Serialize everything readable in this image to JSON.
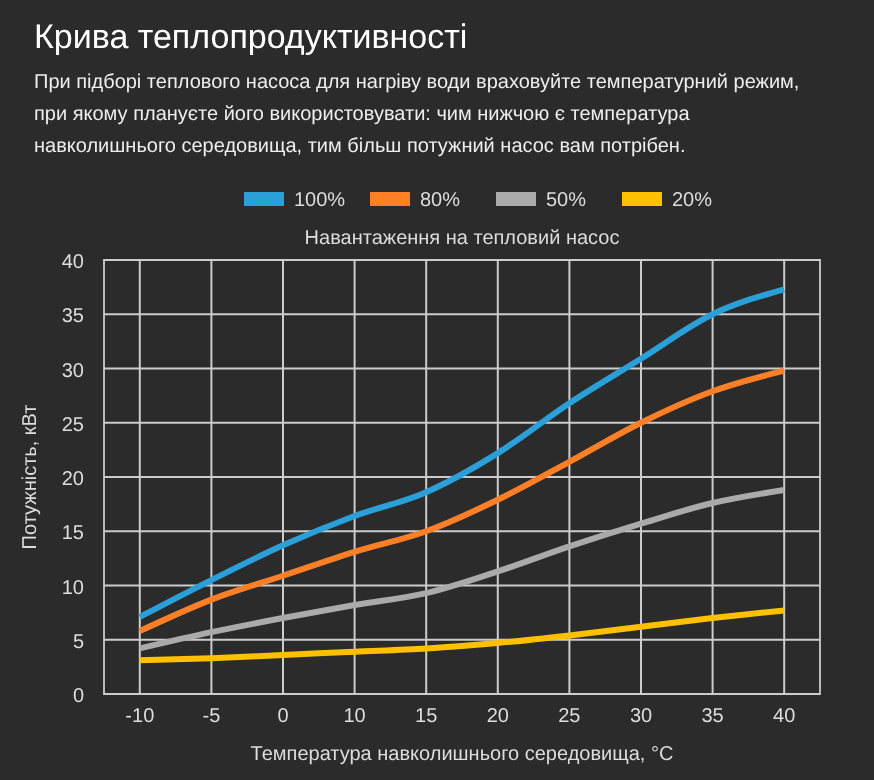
{
  "chart_data": {
    "type": "line",
    "title": "Крива теплопродуктивності",
    "subtitle": "При підборі теплового насоса для нагріву води враховуйте температурний режим, при якому плануєте його використовувати: чим нижчою є температура навколишнього середовища, тим більш потужний насос вам потрібен.",
    "legend_title": "Навантаження на тепловий насос",
    "xlabel": "Температура навколишнього середовища, °C",
    "ylabel": "Потужність, кВт",
    "categories": [
      "-10",
      "-5",
      "0",
      "10",
      "15",
      "20",
      "25",
      "30",
      "35",
      "40"
    ],
    "series": [
      {
        "name": "100%",
        "color": "#2a9fd8",
        "values": [
          7.1,
          10.5,
          13.7,
          16.4,
          18.6,
          22.2,
          26.8,
          30.9,
          35,
          37.3
        ]
      },
      {
        "name": "80%",
        "color": "#ff7f27",
        "values": [
          5.8,
          8.7,
          10.9,
          13.1,
          15,
          17.9,
          21.4,
          25,
          27.9,
          29.8
        ]
      },
      {
        "name": "50%",
        "color": "#aaaaaa",
        "values": [
          4.2,
          5.7,
          7.0,
          8.2,
          9.3,
          11.3,
          13.6,
          15.7,
          17.6,
          18.8
        ]
      },
      {
        "name": "20%",
        "color": "#ffc000",
        "values": [
          3.1,
          3.3,
          3.6,
          3.9,
          4.2,
          4.7,
          5.4,
          6.2,
          7,
          7.7
        ]
      }
    ],
    "ylim": [
      0,
      40
    ],
    "yticks": [
      0,
      5,
      10,
      15,
      20,
      25,
      30,
      35,
      40
    ],
    "grid": true,
    "legend": "top",
    "line_style": "solid",
    "marker": "none"
  }
}
